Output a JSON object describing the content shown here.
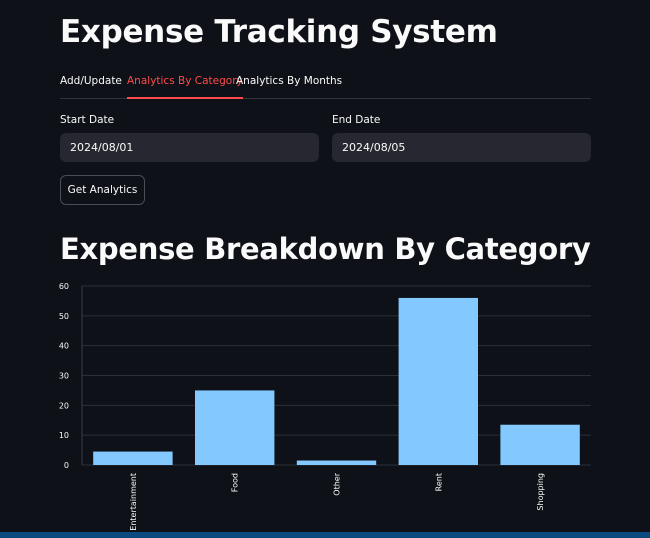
{
  "app": {
    "title": "Expense Tracking System"
  },
  "tabs": [
    {
      "label": "Add/Update",
      "active": false
    },
    {
      "label": "Analytics By Category",
      "active": true
    },
    {
      "label": "Analytics By Months",
      "active": false
    }
  ],
  "form": {
    "start_label": "Start Date",
    "start_value": "2024/08/01",
    "end_label": "End Date",
    "end_value": "2024/08/05",
    "button_label": "Get Analytics"
  },
  "section": {
    "title": "Expense Breakdown By Category"
  },
  "colors": {
    "background": "#0e1117",
    "accent": "#ff4b4b",
    "bar": "#83c9ff",
    "input_bg": "#262730"
  },
  "chart_data": {
    "type": "bar",
    "categories": [
      "Entertainment",
      "Food",
      "Other",
      "Rent",
      "Shopping"
    ],
    "values": [
      4.5,
      25,
      1.5,
      56,
      13.5
    ],
    "ylim": [
      0,
      60
    ],
    "yticks": [
      0,
      10,
      20,
      30,
      40,
      50,
      60
    ],
    "grid": true,
    "title": "",
    "xlabel": "",
    "ylabel": ""
  }
}
